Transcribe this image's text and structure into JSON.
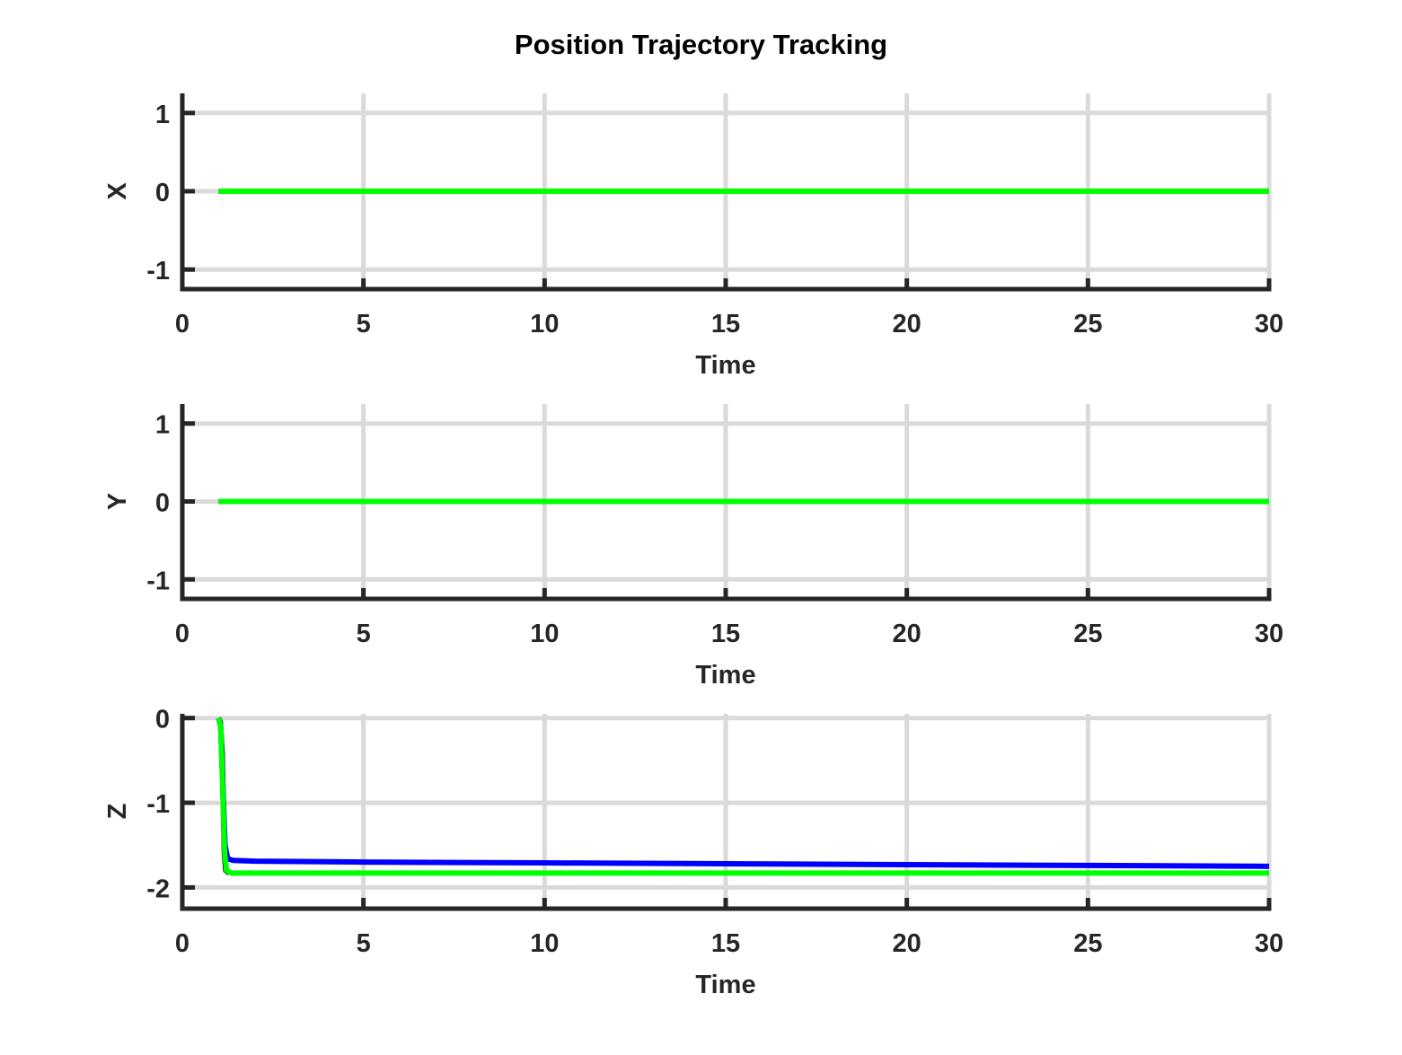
{
  "title": "Position Trajectory Tracking",
  "colors": {
    "grid": "#dadada",
    "axis": "#262626",
    "actual": "#0000ff",
    "reference": "#00ff00",
    "transient_edge": "#000000"
  },
  "chart_data": [
    {
      "type": "line",
      "ylabel": "X",
      "xlabel": "Time",
      "xlim": [
        0,
        30
      ],
      "ylim": [
        -1.25,
        1.25
      ],
      "xticks": [
        0,
        5,
        10,
        15,
        20,
        25,
        30
      ],
      "xtick_labels": [
        "0",
        "5",
        "10",
        "15",
        "20",
        "25",
        "30"
      ],
      "yticks": [
        -1,
        0,
        1
      ],
      "ytick_labels": [
        "-1",
        "0",
        "1"
      ],
      "grid": true,
      "series": [
        {
          "color": "#0000ff",
          "x": [
            1,
            30
          ],
          "y": [
            0,
            0
          ]
        },
        {
          "color": "#00ff00",
          "x": [
            1,
            30
          ],
          "y": [
            0,
            0
          ]
        }
      ]
    },
    {
      "type": "line",
      "ylabel": "Y",
      "xlabel": "Time",
      "xlim": [
        0,
        30
      ],
      "ylim": [
        -1.25,
        1.25
      ],
      "xticks": [
        0,
        5,
        10,
        15,
        20,
        25,
        30
      ],
      "xtick_labels": [
        "0",
        "5",
        "10",
        "15",
        "20",
        "25",
        "30"
      ],
      "yticks": [
        -1,
        0,
        1
      ],
      "ytick_labels": [
        "-1",
        "0",
        "1"
      ],
      "grid": true,
      "series": [
        {
          "color": "#0000ff",
          "x": [
            1,
            30
          ],
          "y": [
            0,
            0
          ]
        },
        {
          "color": "#00ff00",
          "x": [
            1,
            30
          ],
          "y": [
            0,
            0
          ]
        }
      ]
    },
    {
      "type": "line",
      "ylabel": "Z",
      "xlabel": "Time",
      "xlim": [
        0,
        30
      ],
      "ylim": [
        -2.25,
        0.05
      ],
      "xticks": [
        0,
        5,
        10,
        15,
        20,
        25,
        30
      ],
      "xtick_labels": [
        "0",
        "5",
        "10",
        "15",
        "20",
        "25",
        "30"
      ],
      "yticks": [
        -2,
        -1,
        0
      ],
      "ytick_labels": [
        "-2",
        "-1",
        "0"
      ],
      "grid": true,
      "series": [
        {
          "color": "#000000",
          "x": [
            1.0,
            1.05,
            1.1,
            1.13,
            1.16,
            1.2,
            1.3
          ],
          "y": [
            0,
            -0.05,
            -0.4,
            -1.0,
            -1.6,
            -1.8,
            -1.83
          ]
        },
        {
          "color": "#0000ff",
          "x": [
            1.0,
            1.06,
            1.12,
            1.18,
            1.25,
            1.4,
            2,
            5,
            10,
            15,
            20,
            25,
            30
          ],
          "y": [
            0,
            -0.1,
            -0.8,
            -1.5,
            -1.66,
            -1.68,
            -1.69,
            -1.7,
            -1.71,
            -1.72,
            -1.73,
            -1.74,
            -1.75
          ]
        },
        {
          "color": "#00ff00",
          "x": [
            1.0,
            1.06,
            1.12,
            1.17,
            1.22,
            1.35,
            2,
            5,
            10,
            15,
            20,
            25,
            30
          ],
          "y": [
            0,
            -0.1,
            -0.9,
            -1.6,
            -1.8,
            -1.83,
            -1.83,
            -1.83,
            -1.83,
            -1.83,
            -1.83,
            -1.83,
            -1.83
          ]
        }
      ]
    }
  ]
}
